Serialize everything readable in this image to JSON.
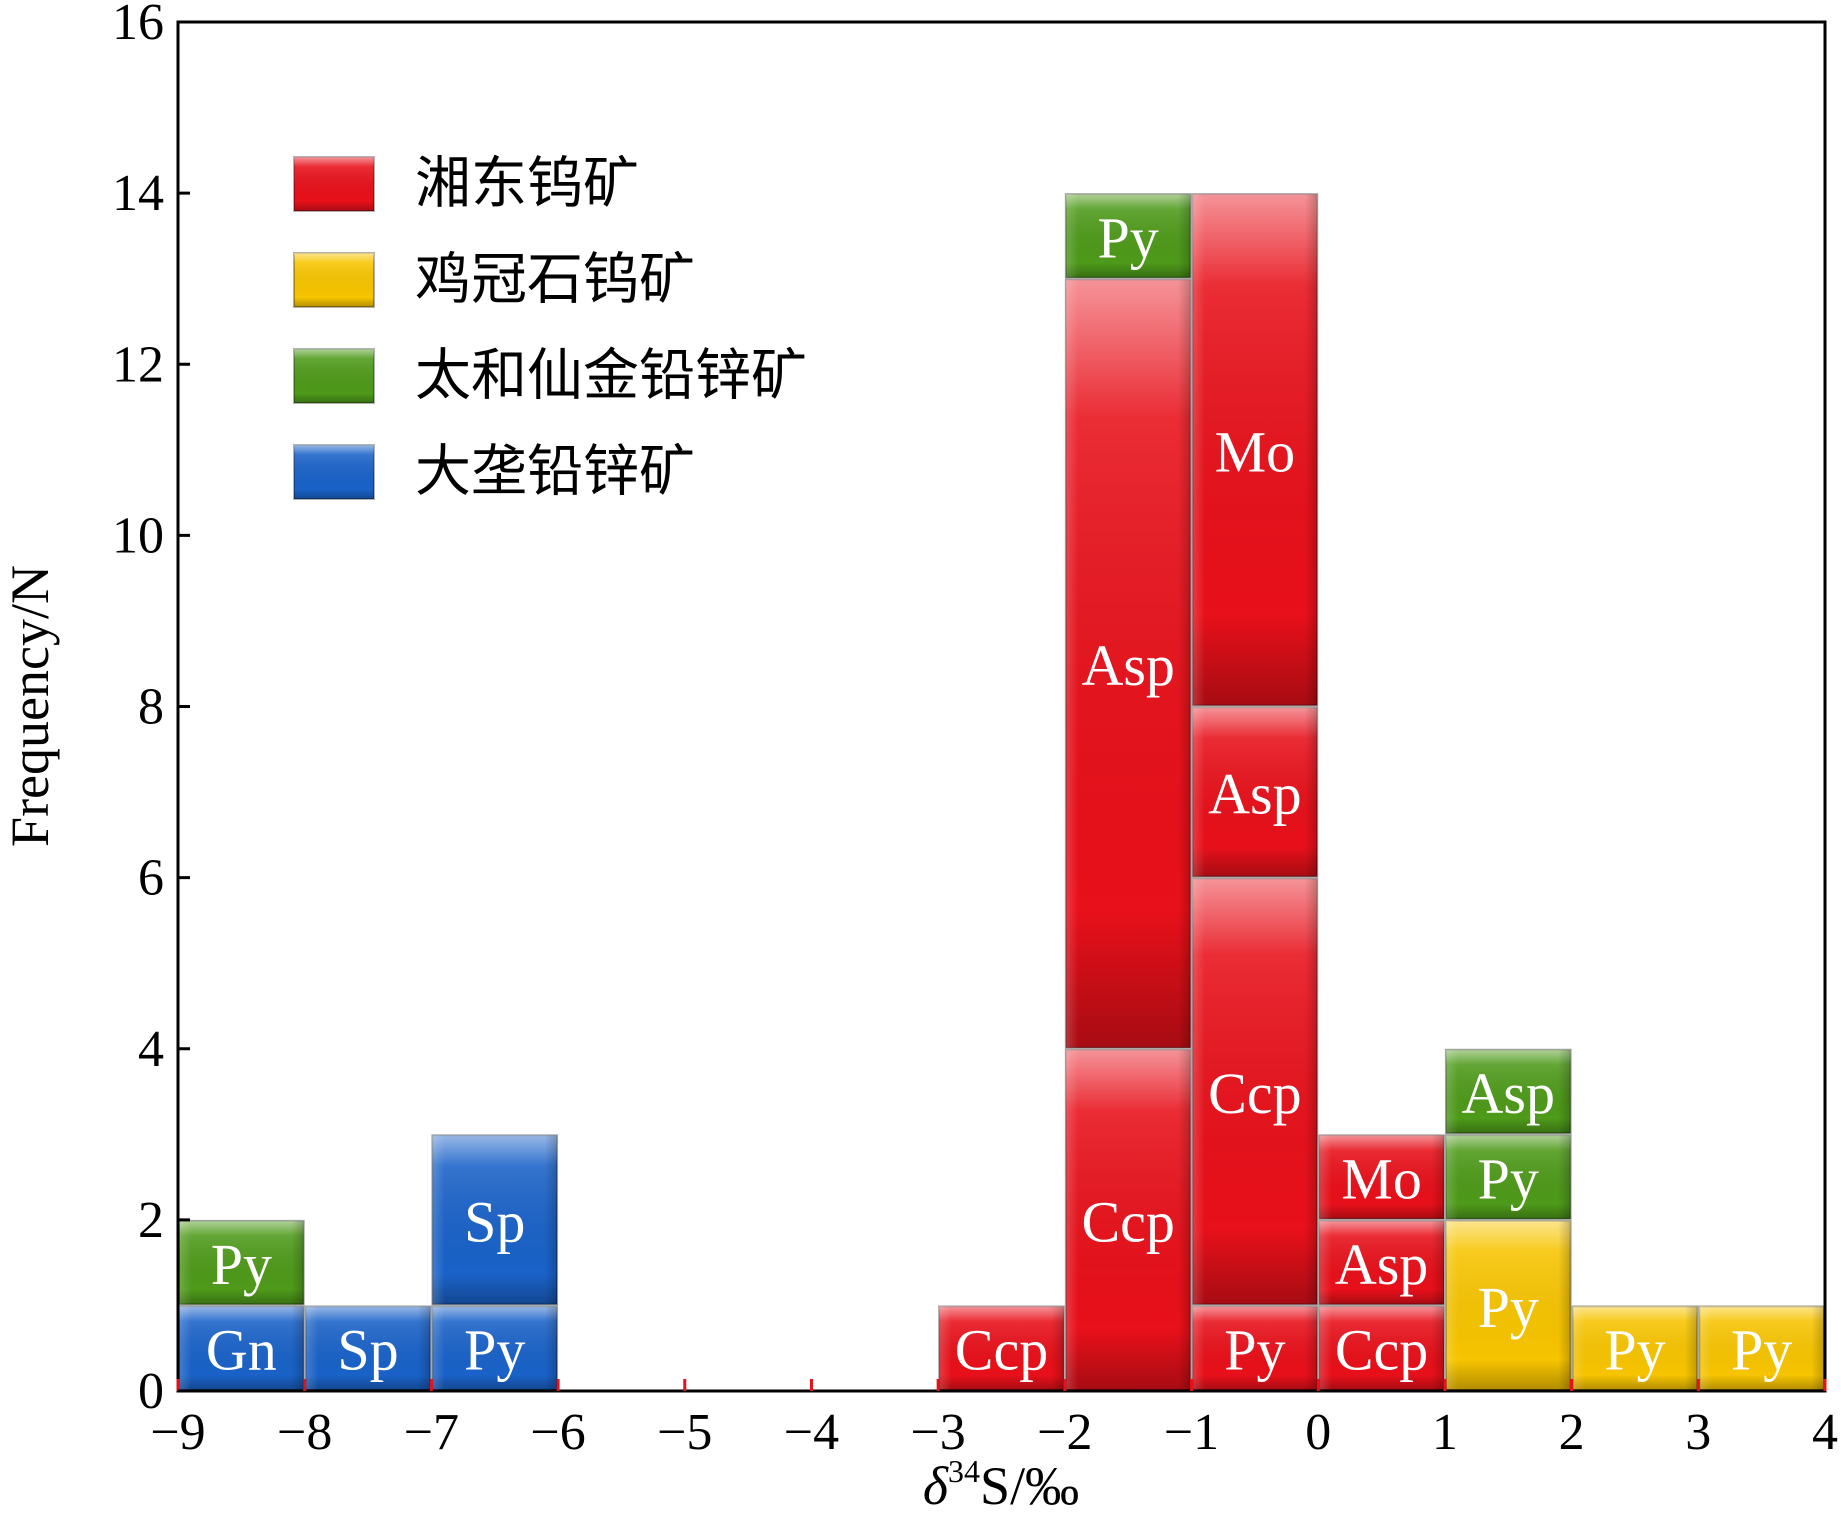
{
  "chart_data": {
    "type": "bar",
    "subtype": "stacked-histogram",
    "xlabel": {
      "prefix": "δ",
      "superscript": "34",
      "suffix": "S/‰"
    },
    "ylabel": "Frequency/N",
    "xlim": [
      -9,
      4
    ],
    "ylim": [
      0,
      16
    ],
    "bin_width": 1,
    "x_ticks": [
      "−9",
      "−8",
      "−7",
      "−6",
      "−5",
      "−4",
      "−3",
      "−2",
      "−1",
      "0",
      "1",
      "2",
      "3",
      "4"
    ],
    "y_ticks": [
      "0",
      "2",
      "4",
      "6",
      "8",
      "10",
      "12",
      "14",
      "16"
    ],
    "grid": false,
    "legend_position": "top-left",
    "colors": {
      "湘东钨矿": "#e8101a",
      "鸡冠石钨矿": "#f7c400",
      "太和仙金铅锌矿": "#4e9a1a",
      "大垄铅锌矿": "#1a62c8"
    },
    "legend": [
      "湘东钨矿",
      "鸡冠石钨矿",
      "太和仙金铅锌矿",
      "大垄铅锌矿"
    ],
    "bins": [
      {
        "x0": -9,
        "x1": -8,
        "segments": [
          {
            "series": "大垄铅锌矿",
            "mineral": "Gn",
            "count": 1
          },
          {
            "series": "太和仙金铅锌矿",
            "mineral": "Py",
            "count": 1
          }
        ]
      },
      {
        "x0": -8,
        "x1": -7,
        "segments": [
          {
            "series": "大垄铅锌矿",
            "mineral": "Sp",
            "count": 1
          }
        ]
      },
      {
        "x0": -7,
        "x1": -6,
        "segments": [
          {
            "series": "大垄铅锌矿",
            "mineral": "Py",
            "count": 1
          },
          {
            "series": "大垄铅锌矿",
            "mineral": "Sp",
            "count": 2
          }
        ]
      },
      {
        "x0": -3,
        "x1": -2,
        "segments": [
          {
            "series": "湘东钨矿",
            "mineral": "Ccp",
            "count": 1
          }
        ]
      },
      {
        "x0": -2,
        "x1": -1,
        "segments": [
          {
            "series": "湘东钨矿",
            "mineral": "Ccp",
            "count": 4
          },
          {
            "series": "湘东钨矿",
            "mineral": "Asp",
            "count": 9
          },
          {
            "series": "太和仙金铅锌矿",
            "mineral": "Py",
            "count": 1
          }
        ]
      },
      {
        "x0": -1,
        "x1": 0,
        "segments": [
          {
            "series": "湘东钨矿",
            "mineral": "Py",
            "count": 1
          },
          {
            "series": "湘东钨矿",
            "mineral": "Ccp",
            "count": 5
          },
          {
            "series": "湘东钨矿",
            "mineral": "Asp",
            "count": 2
          },
          {
            "series": "湘东钨矿",
            "mineral": "Mo",
            "count": 6
          }
        ]
      },
      {
        "x0": 0,
        "x1": 1,
        "segments": [
          {
            "series": "湘东钨矿",
            "mineral": "Ccp",
            "count": 1
          },
          {
            "series": "湘东钨矿",
            "mineral": "Asp",
            "count": 1
          },
          {
            "series": "湘东钨矿",
            "mineral": "Mo",
            "count": 1
          }
        ]
      },
      {
        "x0": 1,
        "x1": 2,
        "segments": [
          {
            "series": "鸡冠石钨矿",
            "mineral": "Py",
            "count": 2
          },
          {
            "series": "太和仙金铅锌矿",
            "mineral": "Py",
            "count": 1
          },
          {
            "series": "太和仙金铅锌矿",
            "mineral": "Asp",
            "count": 1
          }
        ]
      },
      {
        "x0": 2,
        "x1": 3,
        "segments": [
          {
            "series": "鸡冠石钨矿",
            "mineral": "Py",
            "count": 1
          }
        ]
      },
      {
        "x0": 3,
        "x1": 4,
        "segments": [
          {
            "series": "鸡冠石钨矿",
            "mineral": "Py",
            "count": 1
          }
        ]
      }
    ]
  }
}
